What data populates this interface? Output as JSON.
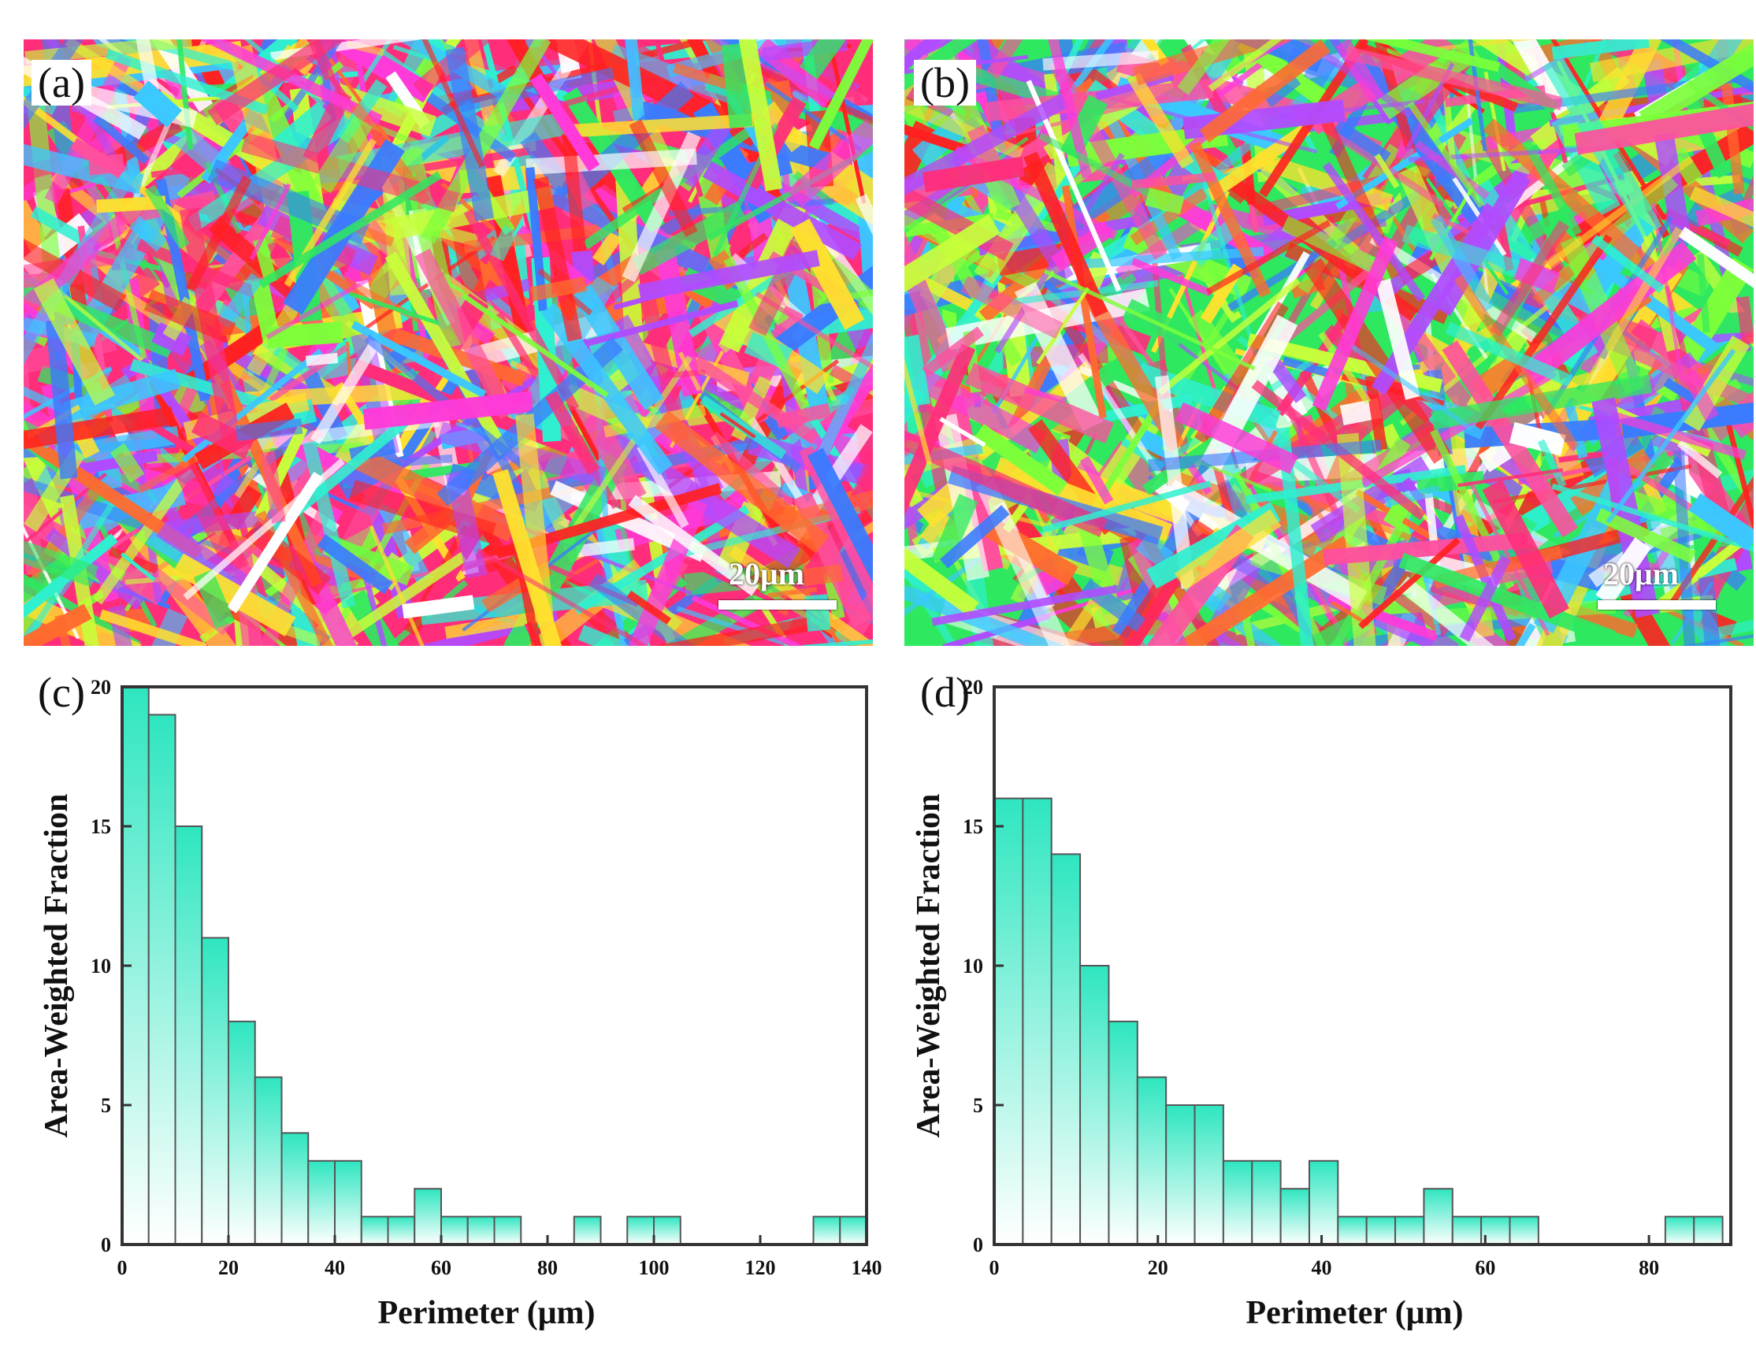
{
  "panels": {
    "a": {
      "label": "(a)",
      "scale_bar": "20μm"
    },
    "b": {
      "label": "(b)",
      "scale_bar": "20μm"
    },
    "c": {
      "label": "(c)"
    },
    "d": {
      "label": "(d)"
    }
  },
  "colors": {
    "bar_top": "#2ee6c0",
    "bar_bottom": "#ffffff",
    "bar_stroke": "#555555",
    "map_palette": [
      "#ff2d7a",
      "#ff4f9e",
      "#2ef0d0",
      "#7cff3a",
      "#3a7bff",
      "#b04bff",
      "#ffe12e",
      "#ff6b2e",
      "#2ee860",
      "#ff3ad9",
      "#ffffff",
      "#ff2020",
      "#3ac8ff",
      "#c8ff3a"
    ]
  },
  "chart_data": [
    {
      "type": "bar",
      "panel": "c",
      "xlabel": "Perimeter (μm)",
      "ylabel": "Area-Weighted Fraction",
      "xlim": [
        0,
        140
      ],
      "ylim": [
        0,
        20
      ],
      "xticks": [
        0,
        20,
        40,
        60,
        80,
        100,
        120,
        140
      ],
      "yticks": [
        0,
        5,
        10,
        15,
        20
      ],
      "bin_width": 5,
      "x": [
        2.5,
        7.5,
        12.5,
        17.5,
        22.5,
        27.5,
        32.5,
        37.5,
        42.5,
        47.5,
        52.5,
        57.5,
        62.5,
        67.5,
        72.5,
        87.5,
        97.5,
        102.5,
        132.5,
        137.5
      ],
      "values": [
        20,
        19,
        15,
        11,
        8,
        6,
        4,
        3,
        3,
        1,
        1,
        2,
        1,
        1,
        1,
        1,
        1,
        1,
        1,
        1
      ]
    },
    {
      "type": "bar",
      "panel": "d",
      "xlabel": "Perimeter (μm)",
      "ylabel": "Area-Weighted Fraction",
      "xlim": [
        0,
        90
      ],
      "ylim": [
        0,
        20
      ],
      "xticks": [
        0,
        20,
        40,
        60,
        80
      ],
      "yticks": [
        0,
        5,
        10,
        15,
        20
      ],
      "bin_width": 3.5,
      "x": [
        1.75,
        5.25,
        8.75,
        12.25,
        15.75,
        19.25,
        22.75,
        26.25,
        29.75,
        33.25,
        36.75,
        40.25,
        43.75,
        47.25,
        50.75,
        54.25,
        57.75,
        61.25,
        64.75,
        83.75,
        87.25
      ],
      "values": [
        16,
        16,
        14,
        10,
        8,
        6,
        5,
        5,
        3,
        3,
        2,
        3,
        1,
        1,
        1,
        2,
        1,
        1,
        1,
        1,
        1
      ]
    }
  ]
}
